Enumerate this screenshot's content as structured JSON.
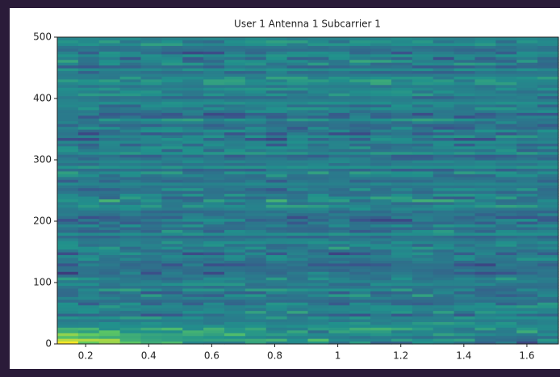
{
  "chart_data": {
    "type": "heatmap",
    "title": "User 1 Antenna 1 Subcarrier 1",
    "xlim": [
      0.11,
      1.7
    ],
    "xticks": [
      0.2,
      0.4,
      0.6,
      0.8,
      1.0,
      1.2,
      1.4,
      1.6
    ],
    "ylim": [
      0,
      500
    ],
    "yticks": [
      0,
      100,
      200,
      300,
      400,
      500
    ]
  }
}
